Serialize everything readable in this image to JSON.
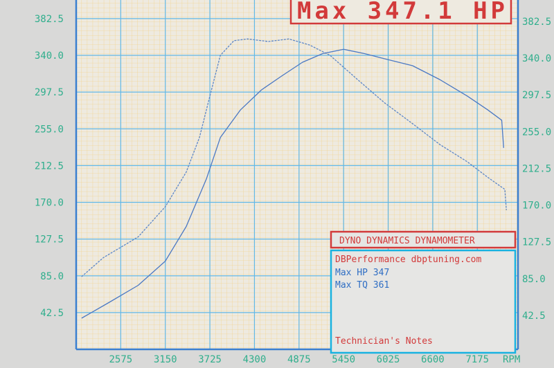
{
  "chart_data": {
    "type": "line",
    "title": "Max 347.1 HP",
    "xlabel": "RPM",
    "ylabel": "",
    "xlim": [
      2000,
      7700
    ],
    "ylim": [
      0,
      400
    ],
    "x_ticks": [
      "2575",
      "3150",
      "3725",
      "4300",
      "4875",
      "5450",
      "6025",
      "6600",
      "7175"
    ],
    "x_tick_values": [
      2575,
      3150,
      3725,
      4300,
      4875,
      5450,
      6025,
      6600,
      7175
    ],
    "y_ticks": [
      "42.5",
      "85.0",
      "127.5",
      "170.0",
      "212.5",
      "255.0",
      "297.5",
      "340.0",
      "382.5"
    ],
    "y_tick_values": [
      42.5,
      85,
      127.5,
      170,
      212.5,
      255,
      297.5,
      340,
      382.5
    ],
    "grid": true,
    "series": [
      {
        "style": "dashed",
        "color": "#5b86c8",
        "x": [
          2070,
          2350,
          2800,
          3150,
          3420,
          3590,
          3725,
          3860,
          4035,
          4210,
          4480,
          4745,
          5010,
          5275,
          5630,
          5980,
          6340,
          6690,
          7045,
          7310,
          7530,
          7550
        ],
        "y": [
          84,
          106,
          130,
          165,
          205,
          245,
          293,
          340,
          357,
          359,
          356,
          359,
          352,
          340,
          312,
          285,
          261,
          237,
          217,
          199,
          185,
          161
        ]
      },
      {
        "style": "solid",
        "color": "#4a78c4",
        "x": [
          2070,
          2420,
          2800,
          3150,
          3420,
          3680,
          3860,
          4120,
          4390,
          4650,
          4920,
          5180,
          5450,
          5720,
          5980,
          6340,
          6690,
          7045,
          7310,
          7490,
          7515
        ],
        "y": [
          36,
          54,
          74,
          102,
          142,
          197,
          245,
          277,
          300,
          316,
          332,
          342,
          347,
          342,
          336,
          328,
          312,
          293,
          277,
          265,
          233
        ]
      }
    ]
  },
  "header": {
    "max_hp_label": "Max 347.1 HP"
  },
  "info": {
    "dyno_title": "DYNO DYNAMICS DYNAMOMETER",
    "shop": "DBPerformance dbptuning.com",
    "max_hp": "Max HP 347",
    "max_tq": "Max TQ 361",
    "notes": "Technician's Notes"
  },
  "colors": {
    "axis": "#3a7fd0",
    "grid_major": "#62b8e6",
    "grid_minor": "#f2d38f",
    "tick_text": "#2fae8c",
    "red": "#d23a3a",
    "cyan": "#19b2e0"
  }
}
